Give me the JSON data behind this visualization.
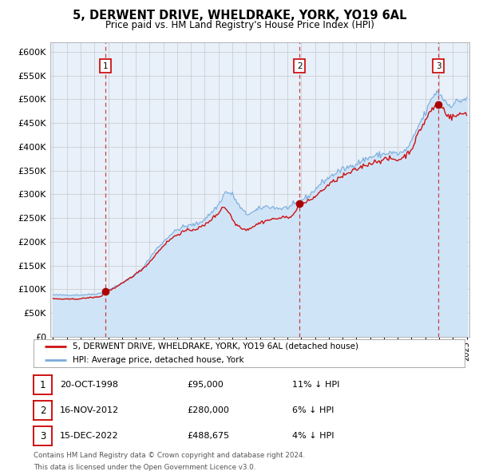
{
  "title": "5, DERWENT DRIVE, WHELDRAKE, YORK, YO19 6AL",
  "subtitle": "Price paid vs. HM Land Registry's House Price Index (HPI)",
  "sale_prices": [
    95000,
    280000,
    488675
  ],
  "sale_labels": [
    "1",
    "2",
    "3"
  ],
  "sale_decimal": [
    1998.8,
    2012.88,
    2022.96
  ],
  "hpi_line_color": "#7aacdb",
  "hpi_fill_color": "#d0e4f7",
  "price_line_color": "#cc1111",
  "price_dot_color": "#aa0000",
  "vline_color": "#cc2222",
  "plot_bg_color": "#e8f0fa",
  "legend_label_price": "5, DERWENT DRIVE, WHELDRAKE, YORK, YO19 6AL (detached house)",
  "legend_label_hpi": "HPI: Average price, detached house, York",
  "table_rows": [
    [
      "1",
      "20-OCT-1998",
      "£95,000",
      "11% ↓ HPI"
    ],
    [
      "2",
      "16-NOV-2012",
      "£280,000",
      "6% ↓ HPI"
    ],
    [
      "3",
      "15-DEC-2022",
      "£488,675",
      "4% ↓ HPI"
    ]
  ],
  "footnote1": "Contains HM Land Registry data © Crown copyright and database right 2024.",
  "footnote2": "This data is licensed under the Open Government Licence v3.0.",
  "ylim": [
    0,
    620000
  ],
  "yticks": [
    0,
    50000,
    100000,
    150000,
    200000,
    250000,
    300000,
    350000,
    400000,
    450000,
    500000,
    550000,
    600000
  ],
  "year_start": 1995,
  "year_end": 2025
}
